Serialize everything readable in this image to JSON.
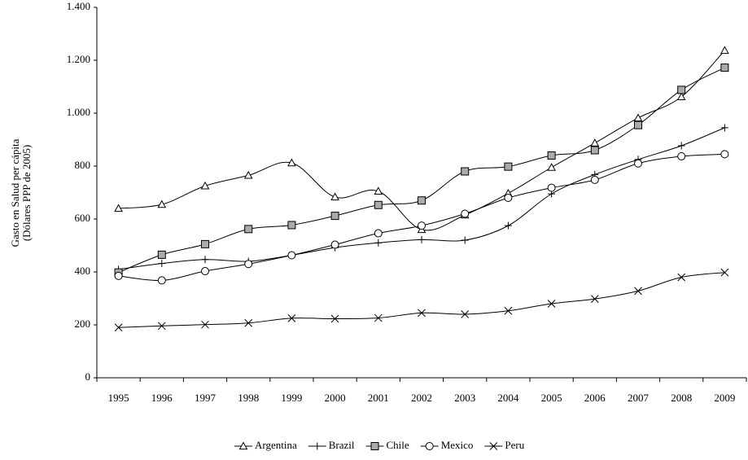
{
  "chart_data": {
    "type": "line",
    "ylabel": [
      "Gasto en Salud per cápita",
      "(Dólares PPP de 2005)"
    ],
    "categories": [
      "1995",
      "1996",
      "1997",
      "1998",
      "1999",
      "2000",
      "2001",
      "2002",
      "2003",
      "2004",
      "2005",
      "2006",
      "2007",
      "2008",
      "2009"
    ],
    "series": [
      {
        "name": "Argentina",
        "color": "#000000",
        "marker": "triangle",
        "values": [
          640,
          655,
          725,
          765,
          812,
          683,
          705,
          560,
          615,
          697,
          795,
          887,
          982,
          1062,
          1237
        ]
      },
      {
        "name": "Brazil",
        "color": "#000000",
        "marker": "plus",
        "values": [
          410,
          432,
          447,
          440,
          463,
          492,
          510,
          522,
          520,
          575,
          695,
          768,
          825,
          877,
          945
        ]
      },
      {
        "name": "Chile",
        "color": "#000000",
        "marker": "square",
        "values": [
          398,
          465,
          505,
          562,
          577,
          612,
          653,
          670,
          780,
          798,
          840,
          860,
          955,
          1088,
          1172
        ]
      },
      {
        "name": "Mexico",
        "color": "#000000",
        "marker": "circle",
        "values": [
          385,
          368,
          403,
          430,
          463,
          503,
          546,
          575,
          620,
          680,
          718,
          748,
          810,
          837,
          845
        ]
      },
      {
        "name": "Peru",
        "color": "#000000",
        "marker": "x",
        "values": [
          190,
          196,
          201,
          207,
          225,
          223,
          226,
          245,
          240,
          253,
          280,
          298,
          328,
          380,
          398
        ]
      }
    ],
    "ylim": [
      0,
      1400
    ],
    "yticks": [
      0,
      200,
      400,
      600,
      800,
      {
        "value": 1000,
        "label": "1.000"
      },
      {
        "value": 1200,
        "label": "1.200"
      },
      {
        "value": 1400,
        "label": "1.400"
      }
    ],
    "grid": false,
    "legend": "bottom"
  }
}
